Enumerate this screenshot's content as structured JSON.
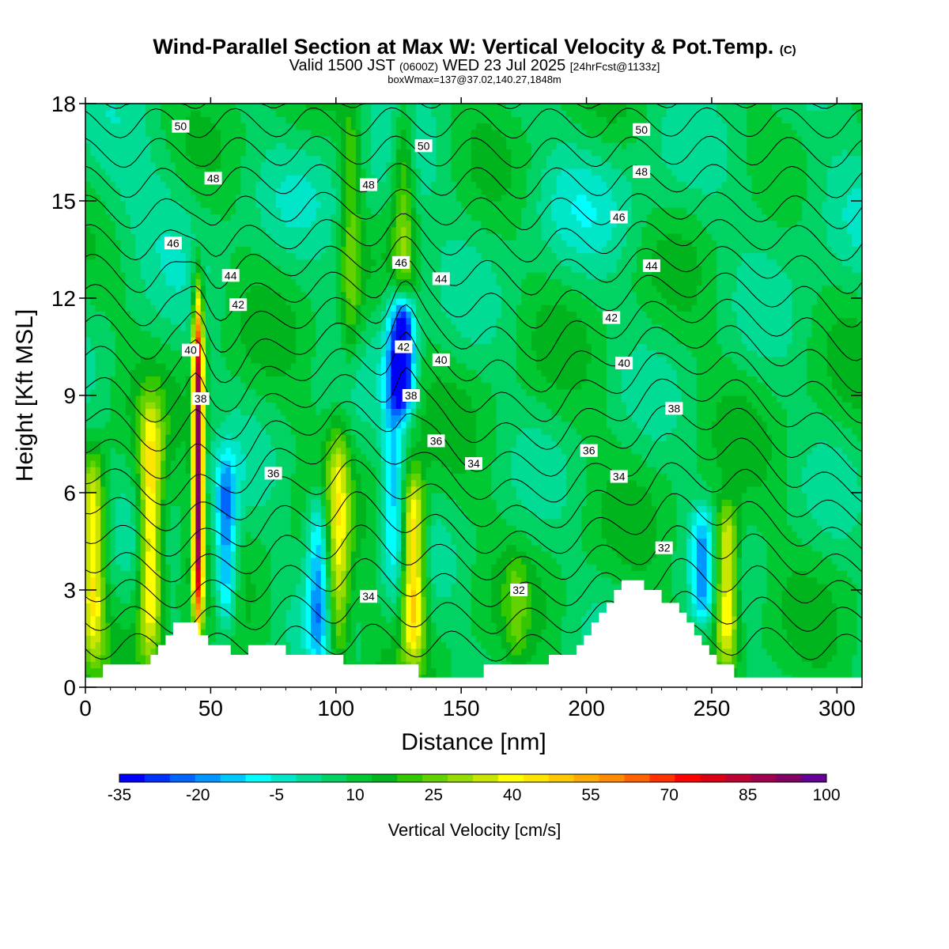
{
  "title": {
    "main": "Wind-Parallel Section at Max W: Vertical Velocity & Pot.Temp.",
    "copyright": "(C)"
  },
  "subtitle": {
    "valid_prefix": "Valid 1500 JST",
    "utc": "(0600Z)",
    "date": "WED 23 Jul 2025",
    "fcst": "[24hrFcst@1133z]"
  },
  "box_info": "boxWmax=137@37.02,140.27,1848m",
  "chart_data": {
    "type": "heatmap",
    "xlabel": "Distance [nm]",
    "ylabel": "Height [Kft MSL]",
    "xlim": [
      0,
      310
    ],
    "ylim": [
      0,
      18
    ],
    "xticks": [
      0,
      50,
      100,
      150,
      200,
      250,
      300
    ],
    "yticks": [
      0,
      3,
      6,
      9,
      12,
      15,
      18
    ],
    "colorbar": {
      "label": "Vertical Velocity [cm/s]",
      "min": -35,
      "max": 100,
      "step": 5,
      "tick_labels": [
        "-35",
        "-20",
        "-5",
        "10",
        "25",
        "40",
        "55",
        "70",
        "85",
        "100"
      ],
      "colors": [
        "#0000ff",
        "#0032ff",
        "#0064ff",
        "#0096ff",
        "#00c8ff",
        "#00ffff",
        "#00e6c8",
        "#00dc96",
        "#00d264",
        "#00c832",
        "#00b41e",
        "#32c800",
        "#64d200",
        "#96dc00",
        "#c8e600",
        "#ffff00",
        "#ffe600",
        "#ffc800",
        "#ffaa00",
        "#ff8c00",
        "#ff6400",
        "#ff3200",
        "#ff0000",
        "#dc0014",
        "#be0032",
        "#a00050",
        "#820064",
        "#640096"
      ]
    },
    "updrafts": [
      {
        "x": 3,
        "ymin": 1.0,
        "ymax": 7.0,
        "w": 45
      },
      {
        "x": 26,
        "ymin": 1.0,
        "ymax": 8.5,
        "w": 50
      },
      {
        "x": 45,
        "ymin": 2.0,
        "ymax": 12.0,
        "w": 95
      },
      {
        "x": 101,
        "ymin": 0.7,
        "ymax": 8.0,
        "w": 38
      },
      {
        "x": 106,
        "ymin": 10.0,
        "ymax": 18.0,
        "w": 28
      },
      {
        "x": 127,
        "ymin": 12.0,
        "ymax": 18.0,
        "w": 30
      },
      {
        "x": 131,
        "ymin": 1.0,
        "ymax": 6.5,
        "w": 55
      },
      {
        "x": 172,
        "ymin": 0.7,
        "ymax": 4.0,
        "w": 20
      },
      {
        "x": 256,
        "ymin": 0.8,
        "ymax": 5.5,
        "w": 50
      }
    ],
    "downdrafts": [
      {
        "x": 56,
        "ymin": 2.0,
        "ymax": 7.0,
        "w": -22
      },
      {
        "x": 93,
        "ymin": 1.0,
        "ymax": 6.0,
        "w": -15
      },
      {
        "x": 123,
        "ymin": 3.0,
        "ymax": 12.0,
        "w": -10
      },
      {
        "x": 127,
        "ymin": 8.5,
        "ymax": 12.0,
        "w": -35
      },
      {
        "x": 246,
        "ymin": 2.0,
        "ymax": 5.5,
        "w": -12
      }
    ],
    "terrain_top_kft": [
      [
        0,
        0.3
      ],
      [
        7,
        0.3
      ],
      [
        7,
        0.7
      ],
      [
        26,
        0.7
      ],
      [
        26,
        1.0
      ],
      [
        29,
        1.0
      ],
      [
        29,
        1.3
      ],
      [
        32,
        1.3
      ],
      [
        32,
        1.6
      ],
      [
        35,
        1.6
      ],
      [
        35,
        2.0
      ],
      [
        40,
        2.0
      ],
      [
        42,
        2.0
      ],
      [
        45,
        2.0
      ],
      [
        45,
        1.6
      ],
      [
        49,
        1.6
      ],
      [
        49,
        1.3
      ],
      [
        58,
        1.3
      ],
      [
        58,
        1.0
      ],
      [
        65,
        1.0
      ],
      [
        65,
        1.3
      ],
      [
        80,
        1.3
      ],
      [
        80,
        1.0
      ],
      [
        103,
        1.0
      ],
      [
        103,
        0.7
      ],
      [
        133,
        0.7
      ],
      [
        133,
        0.3
      ],
      [
        159,
        0.3
      ],
      [
        159,
        0.7
      ],
      [
        185,
        0.7
      ],
      [
        185,
        1.0
      ],
      [
        196,
        1.0
      ],
      [
        196,
        1.3
      ],
      [
        199,
        1.3
      ],
      [
        199,
        1.6
      ],
      [
        202,
        1.6
      ],
      [
        202,
        2.0
      ],
      [
        205,
        2.0
      ],
      [
        205,
        2.3
      ],
      [
        208,
        2.3
      ],
      [
        208,
        2.6
      ],
      [
        211,
        2.6
      ],
      [
        211,
        3.0
      ],
      [
        214,
        3.0
      ],
      [
        214,
        3.3
      ],
      [
        223,
        3.3
      ],
      [
        223,
        3.0
      ],
      [
        230,
        3.0
      ],
      [
        230,
        2.6
      ],
      [
        237,
        2.6
      ],
      [
        237,
        2.3
      ],
      [
        240,
        2.3
      ],
      [
        240,
        2.0
      ],
      [
        243,
        2.0
      ],
      [
        243,
        1.6
      ],
      [
        246,
        1.6
      ],
      [
        246,
        1.3
      ],
      [
        249,
        1.3
      ],
      [
        249,
        1.0
      ],
      [
        252,
        1.0
      ],
      [
        252,
        0.7
      ],
      [
        259,
        0.7
      ],
      [
        259,
        0.3
      ],
      [
        310,
        0.3
      ]
    ],
    "theta_levels": [
      32,
      33,
      34,
      35,
      36,
      37,
      38,
      39,
      40,
      41,
      42,
      43,
      44,
      45,
      46,
      47,
      48,
      49,
      50,
      51
    ],
    "contour_labels": [
      {
        "text": "50",
        "x": 38,
        "y": 17.3
      },
      {
        "text": "48",
        "x": 51,
        "y": 15.7
      },
      {
        "text": "46",
        "x": 35,
        "y": 13.7
      },
      {
        "text": "44",
        "x": 58,
        "y": 12.7
      },
      {
        "text": "42",
        "x": 61,
        "y": 11.8
      },
      {
        "text": "40",
        "x": 42,
        "y": 10.4
      },
      {
        "text": "38",
        "x": 46,
        "y": 8.9
      },
      {
        "text": "36",
        "x": 75,
        "y": 6.6
      },
      {
        "text": "34",
        "x": 113,
        "y": 2.8
      },
      {
        "text": "50",
        "x": 135,
        "y": 16.7
      },
      {
        "text": "48",
        "x": 113,
        "y": 15.5
      },
      {
        "text": "46",
        "x": 126,
        "y": 13.1
      },
      {
        "text": "44",
        "x": 142,
        "y": 12.6
      },
      {
        "text": "42",
        "x": 127,
        "y": 10.5
      },
      {
        "text": "40",
        "x": 142,
        "y": 10.1
      },
      {
        "text": "38",
        "x": 130,
        "y": 9.0
      },
      {
        "text": "36",
        "x": 140,
        "y": 7.6
      },
      {
        "text": "34",
        "x": 155,
        "y": 6.9
      },
      {
        "text": "32",
        "x": 173,
        "y": 3.0
      },
      {
        "text": "50",
        "x": 222,
        "y": 17.2
      },
      {
        "text": "48",
        "x": 222,
        "y": 15.9
      },
      {
        "text": "46",
        "x": 213,
        "y": 14.5
      },
      {
        "text": "44",
        "x": 226,
        "y": 13.0
      },
      {
        "text": "42",
        "x": 210,
        "y": 11.4
      },
      {
        "text": "40",
        "x": 215,
        "y": 10.0
      },
      {
        "text": "38",
        "x": 235,
        "y": 8.6
      },
      {
        "text": "36",
        "x": 201,
        "y": 7.3
      },
      {
        "text": "34",
        "x": 213,
        "y": 6.5
      },
      {
        "text": "32",
        "x": 231,
        "y": 4.3
      }
    ]
  }
}
